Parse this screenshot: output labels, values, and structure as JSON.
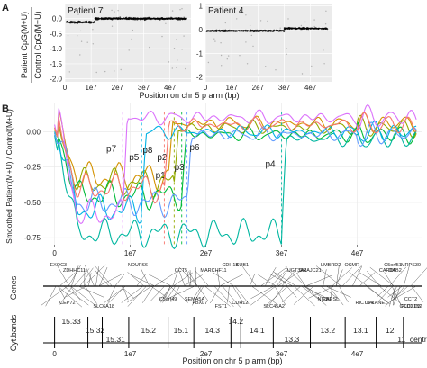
{
  "panel_labels": {
    "a": "A",
    "b": "B"
  },
  "panel_a": {
    "ylabel_line1": "Patient CpG(M+U)",
    "ylabel_line2": "Control CpG(M+U)",
    "xlabel": "Position on chr 5 p arm (bp)"
  },
  "panel_b": {
    "ylabel": "Smoothed Patient(M+U) / Control(M+U)",
    "genes_label": "Genes",
    "cytobands_label": "Cyt.bands",
    "xlabel": "Position on chr 5 p arm (bp)"
  },
  "colors": {
    "p1": "#d39200",
    "p2": "#93aa00",
    "p3": "#00ba38",
    "p4": "#00b6a0",
    "p5": "#00b2e4",
    "p6": "#619cff",
    "p7": "#db72fb",
    "p8": "#f8766d"
  },
  "chart_data": [
    {
      "type": "scatter",
      "title": "Patient 7",
      "xlim": [
        0,
        48000000
      ],
      "ylim": [
        -2.1,
        0.5
      ],
      "xticks": [
        {
          "v": 0,
          "label": "0"
        },
        {
          "v": 10000000,
          "label": "1e7"
        },
        {
          "v": 20000000,
          "label": "2e7"
        },
        {
          "v": 30000000,
          "label": "3e7"
        },
        {
          "v": 40000000,
          "label": "4e7"
        }
      ],
      "yticks": [
        {
          "v": 0.0,
          "label": "0.0"
        },
        {
          "v": -0.5,
          "label": "-0.5"
        },
        {
          "v": -1.0,
          "label": "-1.0"
        },
        {
          "v": -1.5,
          "label": "-1.5"
        },
        {
          "v": -2.0,
          "label": "-2.0"
        }
      ],
      "segments": [
        {
          "x_start": 500000,
          "x_end": 11500000,
          "y": -0.12
        },
        {
          "x_start": 11500000,
          "x_end": 46500000,
          "y": 0.0
        }
      ],
      "breakpoint": 11500000
    },
    {
      "type": "scatter",
      "title": "Patient 4",
      "xlim": [
        0,
        48000000
      ],
      "ylim": [
        -2.2,
        1.1
      ],
      "xticks": [
        {
          "v": 0,
          "label": "0"
        },
        {
          "v": 10000000,
          "label": "1e7"
        },
        {
          "v": 20000000,
          "label": "2e7"
        },
        {
          "v": 30000000,
          "label": "3e7"
        },
        {
          "v": 40000000,
          "label": "4e7"
        }
      ],
      "yticks": [
        {
          "v": 1,
          "label": "1"
        },
        {
          "v": 0,
          "label": "0"
        },
        {
          "v": -1,
          "label": "-1"
        },
        {
          "v": -2,
          "label": "-2"
        }
      ],
      "segments": [
        {
          "x_start": 500000,
          "x_end": 30000000,
          "y": -0.05
        },
        {
          "x_start": 30000000,
          "x_end": 46500000,
          "y": 0.05
        }
      ],
      "breakpoint": 30000000
    },
    {
      "type": "line",
      "xlim": [
        -1500000,
        48500000
      ],
      "ylim": [
        -0.8,
        0.2
      ],
      "xticks": [
        {
          "v": 0,
          "label": "0"
        },
        {
          "v": 10000000,
          "label": "1e7"
        },
        {
          "v": 20000000,
          "label": "2e7"
        },
        {
          "v": 30000000,
          "label": "3e7"
        },
        {
          "v": 40000000,
          "label": "4e7"
        },
        {
          "v": 50000000,
          "label": "5e7"
        }
      ],
      "yticks": [
        {
          "v": 0.0,
          "label": "0.00"
        },
        {
          "v": -0.25,
          "label": "-0.25"
        },
        {
          "v": -0.5,
          "label": "-0.50"
        },
        {
          "v": -0.75,
          "label": "-0.75"
        }
      ],
      "series": [
        {
          "name": "p1",
          "color_key": "p1",
          "breakpoint": 15000000,
          "drop": -0.32,
          "label_x": 14000000,
          "label_y": -0.33,
          "baseline": 0.06
        },
        {
          "name": "p2",
          "color_key": "p2",
          "breakpoint": 15800000,
          "drop": -0.36,
          "label_x": 14200000,
          "label_y": -0.2,
          "baseline": 0.03
        },
        {
          "name": "p3",
          "color_key": "p3",
          "breakpoint": 16800000,
          "drop": -0.45,
          "label_x": 16500000,
          "label_y": -0.27,
          "baseline": -0.02
        },
        {
          "name": "p4",
          "color_key": "p4",
          "breakpoint": 30000000,
          "drop": -0.72,
          "label_x": 28500000,
          "label_y": -0.25,
          "baseline": -0.05
        },
        {
          "name": "p5",
          "color_key": "p5",
          "breakpoint": 11500000,
          "drop": -0.55,
          "label_x": 10500000,
          "label_y": -0.2,
          "baseline": 0.0
        },
        {
          "name": "p6",
          "color_key": "p6",
          "breakpoint": 17500000,
          "drop": -0.5,
          "label_x": 18500000,
          "label_y": -0.13,
          "baseline": -0.02
        },
        {
          "name": "p7",
          "color_key": "p7",
          "breakpoint": 9000000,
          "drop": -0.58,
          "label_x": 7500000,
          "label_y": -0.14,
          "baseline": 0.1
        },
        {
          "name": "p8",
          "color_key": "p8",
          "breakpoint": 14500000,
          "drop": -0.4,
          "label_x": 12300000,
          "label_y": -0.15,
          "baseline": 0.05
        }
      ],
      "genes": [
        {
          "label": "EXOC3",
          "x": 500000
        },
        {
          "label": "CEP72",
          "x": 1700000
        },
        {
          "label": "ZDHHC11",
          "x": 2600000
        },
        {
          "label": "SLC6A18",
          "x": 6500000
        },
        {
          "label": "NDUFS6",
          "x": 11000000
        },
        {
          "label": "C5orf49",
          "x": 15000000
        },
        {
          "label": "CCT5",
          "x": 16700000
        },
        {
          "label": "FBXL7",
          "x": 19200000
        },
        {
          "label": "SUB1",
          "x": 24800000
        },
        {
          "label": "SLC45A2",
          "x": 29000000
        },
        {
          "label": "UGT3A2",
          "x": 32000000
        },
        {
          "label": "NIPBL",
          "x": 35700000
        },
        {
          "label": "OSMR",
          "x": 39300000
        },
        {
          "label": "RICTOR",
          "x": 41000000
        },
        {
          "label": "CARD6",
          "x": 44000000
        },
        {
          "label": "CCDC152",
          "x": 47600000
        },
        {
          "label": "C5orf51",
          "x": 44700000
        },
        {
          "label": "SEMA5A",
          "x": 18500000
        },
        {
          "label": "MARCHF11",
          "x": 21000000
        },
        {
          "label": "CDH12",
          "x": 24500000
        },
        {
          "label": "CDH18",
          "x": 23200000
        },
        {
          "label": "FST1",
          "x": 22000000
        },
        {
          "label": "DNAJC21",
          "x": 33800000
        },
        {
          "label": "CAPSL",
          "x": 36500000
        },
        {
          "label": "LMBRD2",
          "x": 36500000
        },
        {
          "label": "UPLANE1",
          "x": 42500000
        },
        {
          "label": "DAB2",
          "x": 45000000
        },
        {
          "label": "PLCXD3",
          "x": 49000000
        },
        {
          "label": "MRPS30",
          "x": 51000000
        },
        {
          "label": "CCT2",
          "x": 52000000
        }
      ],
      "cytobands": [
        {
          "label": "15.33",
          "start": 0,
          "end": 4400000,
          "row": 0
        },
        {
          "label": "15.32",
          "start": 4400000,
          "end": 6300000,
          "row": 1
        },
        {
          "label": "15.31",
          "start": 6300000,
          "end": 9800000,
          "row": 2
        },
        {
          "label": "15.2",
          "start": 9800000,
          "end": 15000000,
          "row": 1
        },
        {
          "label": "15.1",
          "start": 15000000,
          "end": 18400000,
          "row": 1
        },
        {
          "label": "14.3",
          "start": 18400000,
          "end": 23300000,
          "row": 1
        },
        {
          "label": "14.2",
          "start": 23300000,
          "end": 24600000,
          "row": 0
        },
        {
          "label": "14.1",
          "start": 24600000,
          "end": 28900000,
          "row": 1
        },
        {
          "label": "13.3",
          "start": 28900000,
          "end": 33800000,
          "row": 2
        },
        {
          "label": "13.2",
          "start": 33800000,
          "end": 38400000,
          "row": 1
        },
        {
          "label": "13.1",
          "start": 38400000,
          "end": 42500000,
          "row": 1
        },
        {
          "label": "12",
          "start": 42500000,
          "end": 46100000,
          "row": 1
        },
        {
          "label": "11_centr",
          "start": 46100000,
          "end": 48400000,
          "row": 2
        }
      ]
    }
  ]
}
